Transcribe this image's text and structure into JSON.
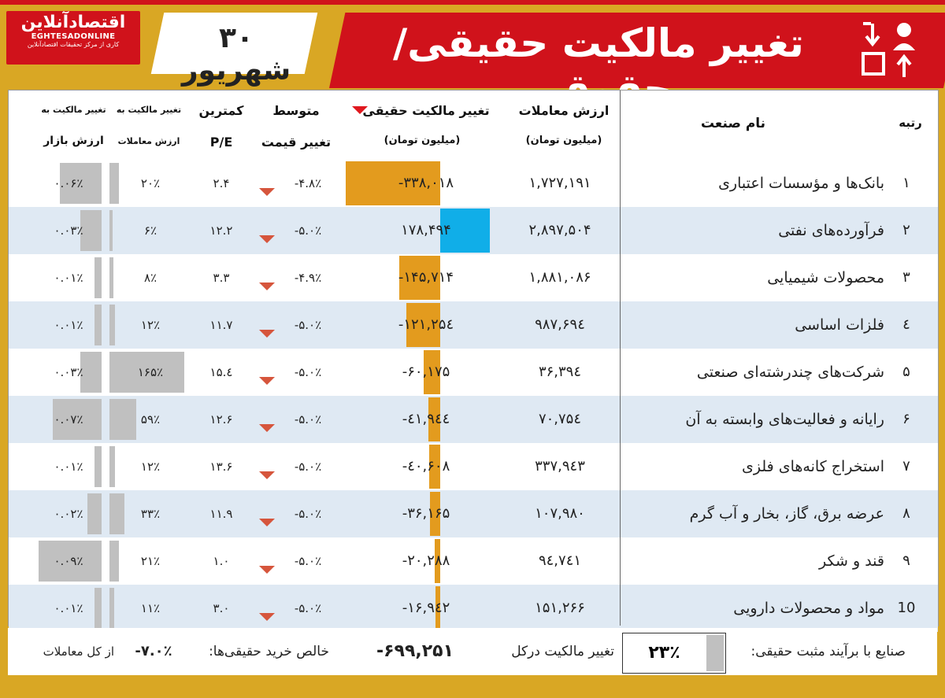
{
  "header": {
    "title": "تغییر مالکیت حقیقی/حقوقی",
    "date": "۳۰ شهریور",
    "logo_fa": "اقتصادآنلاین",
    "logo_en": "EGHTESADONLINE",
    "logo_tagline": "کاری از مرکز تحقیقات اقتصادآنلاین",
    "icon": "ownership-change-icon",
    "colors": {
      "red": "#d0121b",
      "gold": "#d9a724"
    }
  },
  "columns": {
    "rank": "رتبه",
    "industry": "نام صنعت",
    "trade_value_1": "ارزش معاملات",
    "trade_value_2": "(میلیون تومان)",
    "real_change_1": "تغییر مالکیت حقیقی",
    "real_change_2": "(میلیون تومان)",
    "avg_price_1": "متوسط",
    "avg_price_2": "تغییر قیمت",
    "pe_1": "کمترین",
    "pe_2": "P/E",
    "to_trade_1": "تغییر مالکیت به",
    "to_trade_2": "ارزش معاملات",
    "to_market_1": "تغییر مالکیت به",
    "to_market_2": "ارزش بازار"
  },
  "rows": [
    {
      "rank": "۱",
      "industry": "بانک‌ها و مؤسسات اعتباری",
      "trade_value": "۱,۷۲۷,۱۹۱",
      "real_change": "-۳۳۸,۰۱۸",
      "real_change_value": -338018,
      "avg_price": "-۴.۸٪",
      "pe": "۲.۴",
      "to_trade": "۲۰٪",
      "to_trade_value": 20,
      "to_market": "۰.۰۶٪",
      "to_market_value": 0.06
    },
    {
      "rank": "۲",
      "industry": "فرآورده‌های نفتی",
      "trade_value": "۲,۸۹۷,۵۰۴",
      "real_change": "۱۷۸,۴۹۴",
      "real_change_value": 178494,
      "avg_price": "-۵.۰٪",
      "pe": "۱۲.۲",
      "to_trade": "۶٪",
      "to_trade_value": 6,
      "to_market": "۰.۰۳٪",
      "to_market_value": 0.03
    },
    {
      "rank": "۳",
      "industry": "محصولات شیمیایی",
      "trade_value": "۱,۸۸۱,۰۸۶",
      "real_change": "-۱۴۵,۷۱۴",
      "real_change_value": -145714,
      "avg_price": "-۴.۹٪",
      "pe": "۳.۳",
      "to_trade": "۸٪",
      "to_trade_value": 8,
      "to_market": "۰.۰۱٪",
      "to_market_value": 0.01
    },
    {
      "rank": "٤",
      "industry": "فلزات اساسی",
      "trade_value": "۹۸۷,۶۹٤",
      "real_change": "-۱۲۱,۲۵٤",
      "real_change_value": -121254,
      "avg_price": "-۵.۰٪",
      "pe": "۱۱.۷",
      "to_trade": "۱۲٪",
      "to_trade_value": 12,
      "to_market": "۰.۰۱٪",
      "to_market_value": 0.01
    },
    {
      "rank": "۵",
      "industry": "شرکت‌های چندرشته‌ای صنعتی",
      "trade_value": "۳۶,۳۹٤",
      "real_change": "-۶۰,۱۷۵",
      "real_change_value": -60175,
      "avg_price": "-۵.۰٪",
      "pe": "۱۵.٤",
      "to_trade": "۱۶۵٪",
      "to_trade_value": 165,
      "to_market": "۰.۰۳٪",
      "to_market_value": 0.03
    },
    {
      "rank": "۶",
      "industry": "رایانه و فعالیت‌های وابسته به آن",
      "trade_value": "۷۰,۷۵٤",
      "real_change": "-٤۱,۹٤٤",
      "real_change_value": -41944,
      "avg_price": "-۵.۰٪",
      "pe": "۱۲.۶",
      "to_trade": "۵۹٪",
      "to_trade_value": 59,
      "to_market": "۰.۰۷٪",
      "to_market_value": 0.07
    },
    {
      "rank": "۷",
      "industry": "استخراج کانه‌های فلزی",
      "trade_value": "۳۳۷,۹٤۳",
      "real_change": "-٤۰,۶۰۸",
      "real_change_value": -40608,
      "avg_price": "-۵.۰٪",
      "pe": "۱۳.۶",
      "to_trade": "۱۲٪",
      "to_trade_value": 12,
      "to_market": "۰.۰۱٪",
      "to_market_value": 0.01
    },
    {
      "rank": "۸",
      "industry": "عرضه برق، گاز، بخار و آب گرم",
      "trade_value": "۱۰۷,۹۸۰",
      "real_change": "-۳۶,۱۶۵",
      "real_change_value": -36165,
      "avg_price": "-۵.۰٪",
      "pe": "۱۱.۹",
      "to_trade": "۳۳٪",
      "to_trade_value": 33,
      "to_market": "۰.۰۲٪",
      "to_market_value": 0.02
    },
    {
      "rank": "۹",
      "industry": "قند و شکر",
      "trade_value": "۹٤,۷٤۱",
      "real_change": "-۲۰,۲۸۸",
      "real_change_value": -20288,
      "avg_price": "-۵.۰٪",
      "pe": "۱.۰",
      "to_trade": "۲۱٪",
      "to_trade_value": 21,
      "to_market": "۰.۰۹٪",
      "to_market_value": 0.09
    },
    {
      "rank": "10",
      "industry": "مواد و محصولات دارویی",
      "trade_value": "۱۵۱,۲۶۶",
      "real_change": "-۱۶,۹٤۲",
      "real_change_value": -16942,
      "avg_price": "-۵.۰٪",
      "pe": "۳.۰",
      "to_trade": "۱۱٪",
      "to_trade_value": 11,
      "to_market": "۰.۰۱٪",
      "to_market_value": 0.01
    }
  ],
  "footer": {
    "positive_label": "صنایع با برآیند مثبت حقیقی:",
    "positive_value": "۲۳٪",
    "total_label": "تغییر مالکیت درکل",
    "total_value": "-۶۹۹,۲۵۱",
    "net_label": "خالص خرید حقیقی‌ها:",
    "net_value": "-۷.۰٪",
    "net_suffix": "از کل معاملات"
  },
  "colors": {
    "negative_bar": "#e39b1e",
    "positive_bar": "#10aee8",
    "gray_bar": "#c0c0c0",
    "alt_row": "#dfe9f3",
    "arrow": "#d6553c"
  }
}
